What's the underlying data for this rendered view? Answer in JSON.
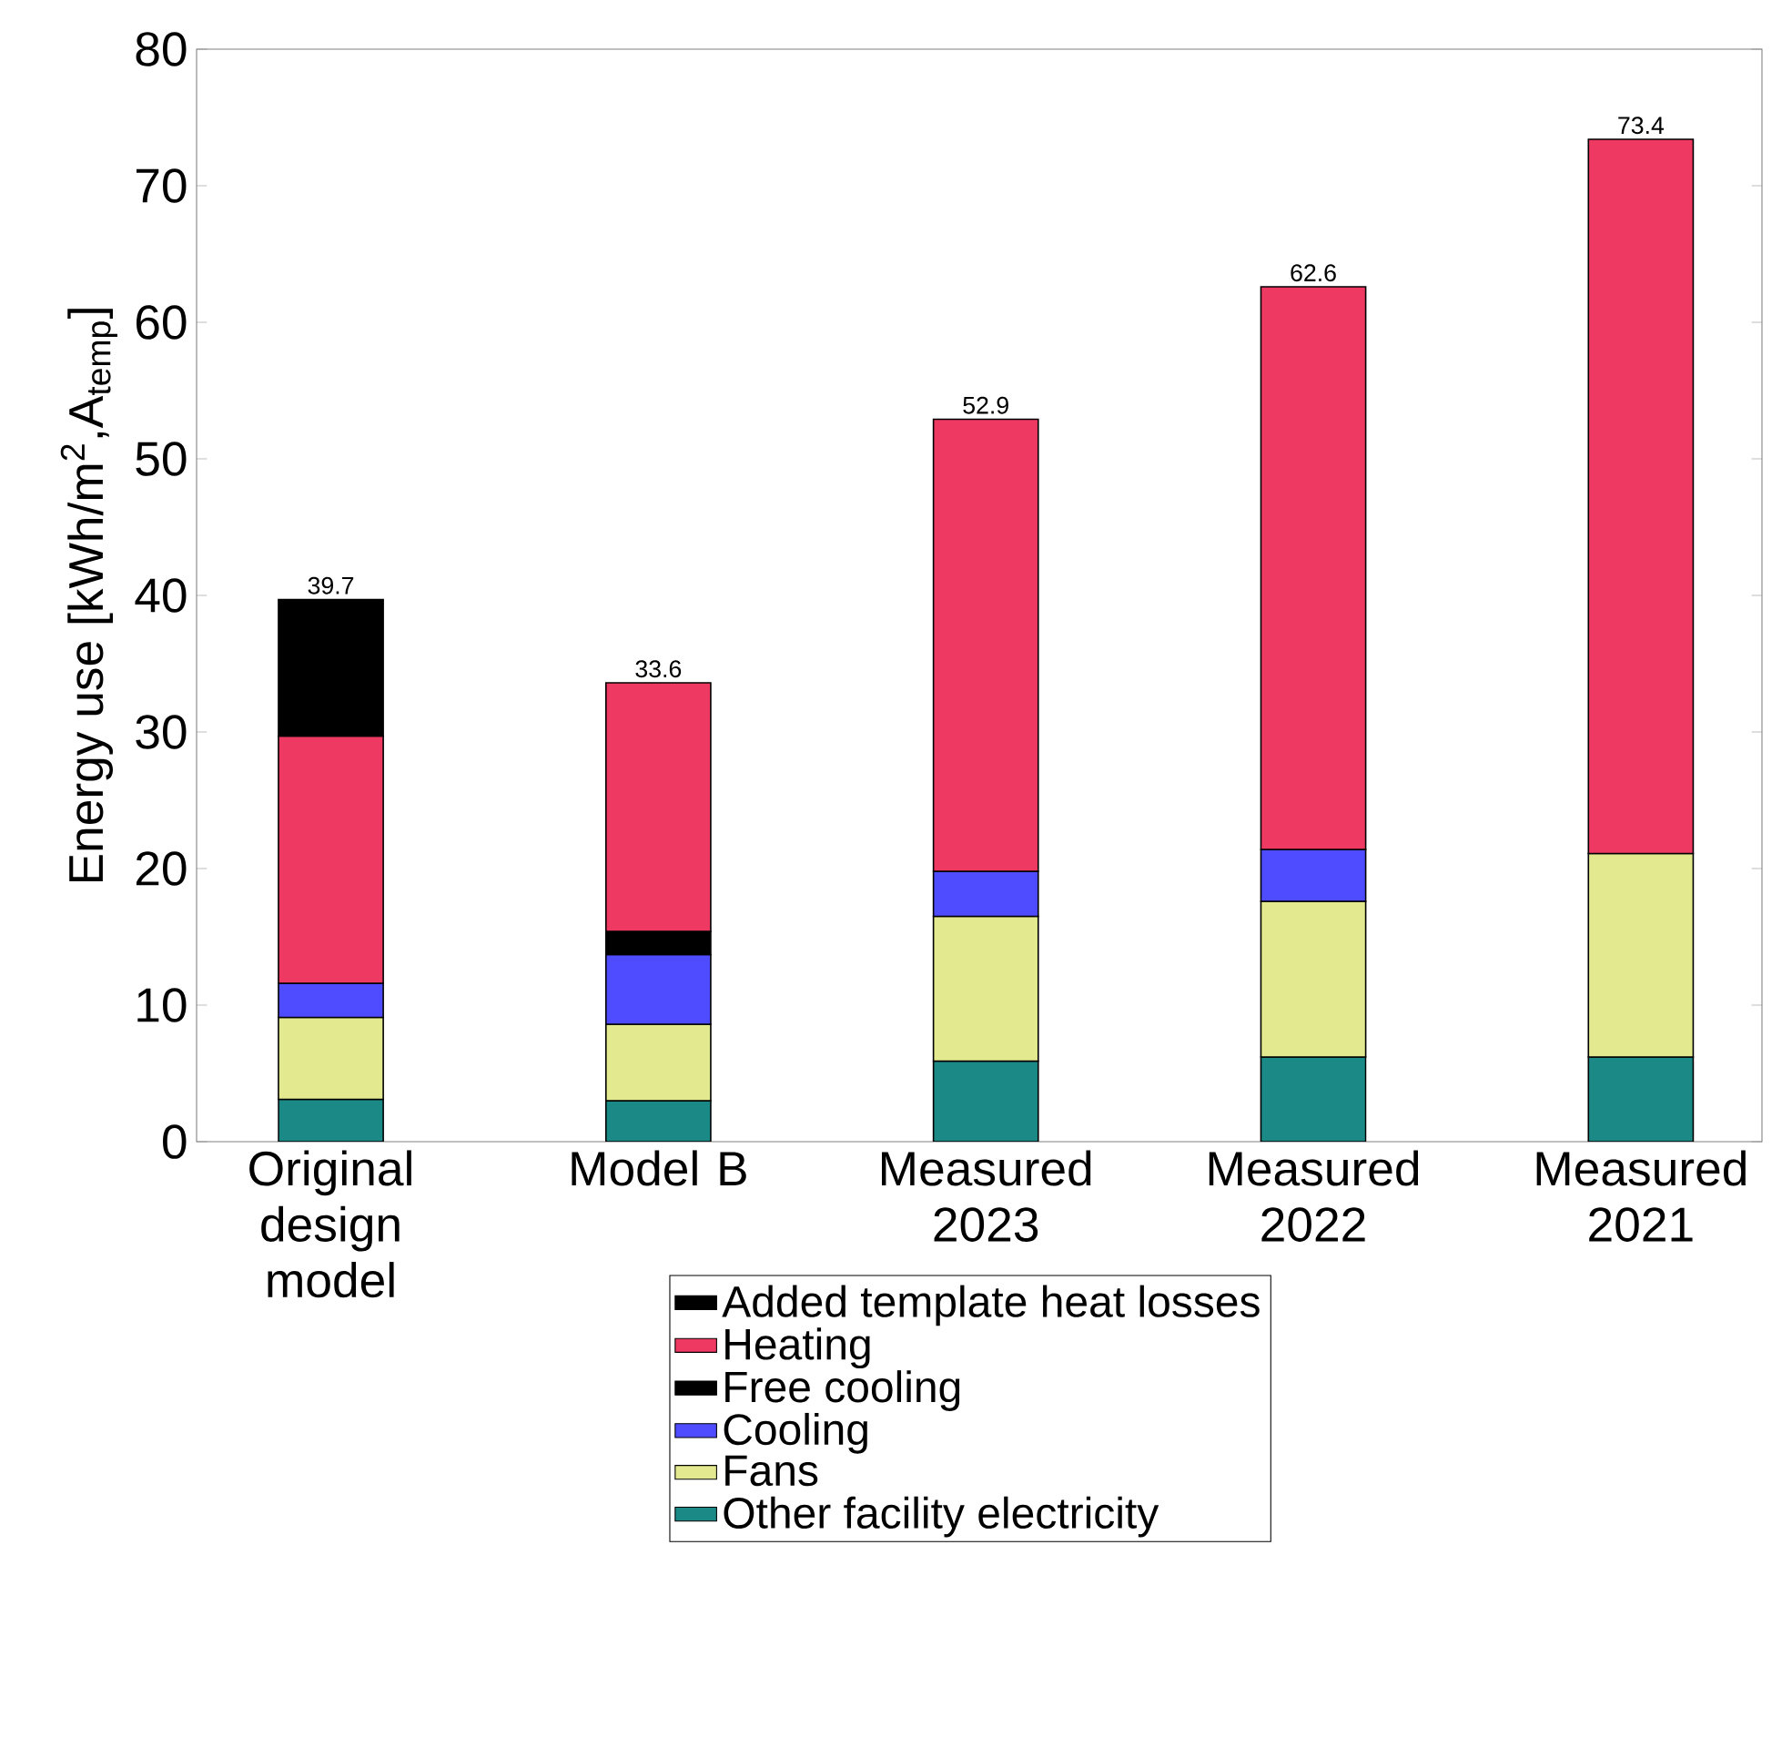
{
  "chart_data": {
    "type": "bar",
    "stacked": true,
    "categories": [
      "Original design model",
      "Model B",
      "Measured 2023",
      "Measured 2022",
      "Measured 2021"
    ],
    "series": [
      {
        "name": "Other facility electricity",
        "color": "#1b8a87",
        "values": [
          3.1,
          3.0,
          5.9,
          6.2,
          6.2
        ]
      },
      {
        "name": "Fans",
        "color": "#e3e98e",
        "values": [
          6.0,
          5.6,
          10.6,
          11.4,
          14.9
        ]
      },
      {
        "name": "Cooling",
        "color": "#4f4cff",
        "values": [
          2.5,
          5.1,
          3.3,
          3.8,
          null
        ]
      },
      {
        "name": "Free cooling",
        "color": "#000000",
        "values": [
          null,
          1.7,
          null,
          null,
          null
        ]
      },
      {
        "name": "Heating",
        "color": "#ee3a63",
        "values": [
          18.1,
          18.2,
          33.1,
          41.2,
          52.3
        ]
      },
      {
        "name": "Added template heat losses",
        "color": "#000000",
        "values": [
          10.0,
          null,
          null,
          null,
          null
        ]
      }
    ],
    "totals": [
      "39.7",
      "33.6",
      "52.9",
      "62.6",
      "73.4"
    ],
    "ylabel": "Energy use [kWh/m$^{2}$,A$_{temp}$]",
    "ylim": [
      0,
      80
    ],
    "yticks": [
      0,
      10,
      20,
      30,
      40,
      50,
      60,
      70,
      80
    ],
    "legend": "bottom"
  }
}
